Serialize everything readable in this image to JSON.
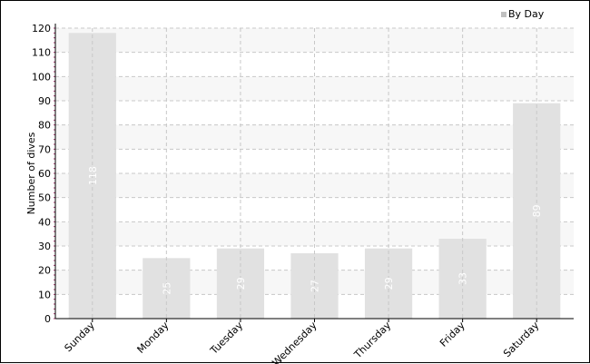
{
  "chart_data": {
    "type": "bar",
    "categories": [
      "Sunday",
      "Monday",
      "Tuesday",
      "Wednesday",
      "Thursday",
      "Friday",
      "Saturday"
    ],
    "series": [
      {
        "name": "By Day",
        "values": [
          118,
          25,
          29,
          27,
          29,
          33,
          89
        ]
      }
    ],
    "data_labels": [
      "118",
      "25",
      "29",
      "27",
      "29",
      "33",
      "89"
    ],
    "ylabel": "Number of dives",
    "xlabel": "",
    "ylim": [
      0,
      120
    ],
    "yticks": [
      0,
      10,
      20,
      30,
      40,
      50,
      60,
      70,
      80,
      90,
      100,
      110,
      120
    ],
    "grid": true,
    "legend": "top-right",
    "colors": {
      "bar": "#e1e1e1",
      "band": "#f7f7f7",
      "grid": "#c8c8c8",
      "legend_swatch": "#c0c0c0",
      "minor_tick": "#a0306a"
    }
  }
}
